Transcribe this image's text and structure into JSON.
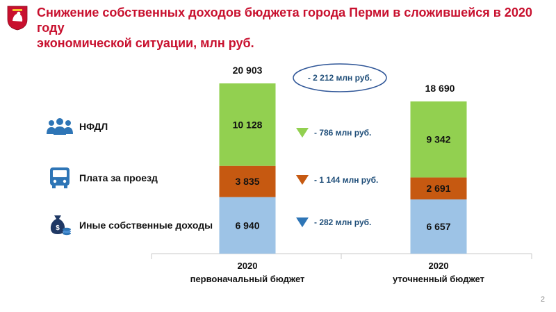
{
  "title_line1": "Снижение собственных доходов бюджета города Перми в сложившейся в 2020 году",
  "title_line2": "экономической ситуации, млн руб.",
  "page_number": "2",
  "legend": [
    {
      "label": "НФДЛ",
      "icon": "people-group-icon"
    },
    {
      "label": "Плата за проезд",
      "icon": "bus-icon"
    },
    {
      "label": "Иные собственные доходы",
      "icon": "money-bag-coins-icon"
    }
  ],
  "colors": {
    "title": "#c8102e",
    "nfdl": "#92d050",
    "fare": "#c65911",
    "other": "#9dc3e6",
    "icon": "#2e75b6",
    "delta_text": "#1f4e79",
    "ellipse": "#2e5597"
  },
  "total_delta_label": "- 2 212 млн руб.",
  "chart_data": {
    "type": "bar",
    "stacked": true,
    "categories": [
      "2020 первоначальный бюджет",
      "2020 уточненный бюджет"
    ],
    "category_lines": [
      [
        "2020",
        "первоначальный бюджет"
      ],
      [
        "2020",
        "уточненный бюджет"
      ]
    ],
    "series": [
      {
        "name": "Иные собственные доходы",
        "values": [
          6940,
          6657
        ],
        "labels": [
          "6 940",
          "6 657"
        ],
        "delta": "- 282 млн руб."
      },
      {
        "name": "Плата за проезд",
        "values": [
          3835,
          2691
        ],
        "labels": [
          "3 835",
          "2 691"
        ],
        "delta": "- 1 144 млн руб."
      },
      {
        "name": "НФДЛ",
        "values": [
          10128,
          9342
        ],
        "labels": [
          "10 128",
          "9 342"
        ],
        "delta": "- 786 млн руб."
      }
    ],
    "totals": [
      20903,
      18690
    ],
    "total_labels": [
      "20 903",
      "18 690"
    ],
    "ylim": [
      0,
      25000
    ]
  }
}
